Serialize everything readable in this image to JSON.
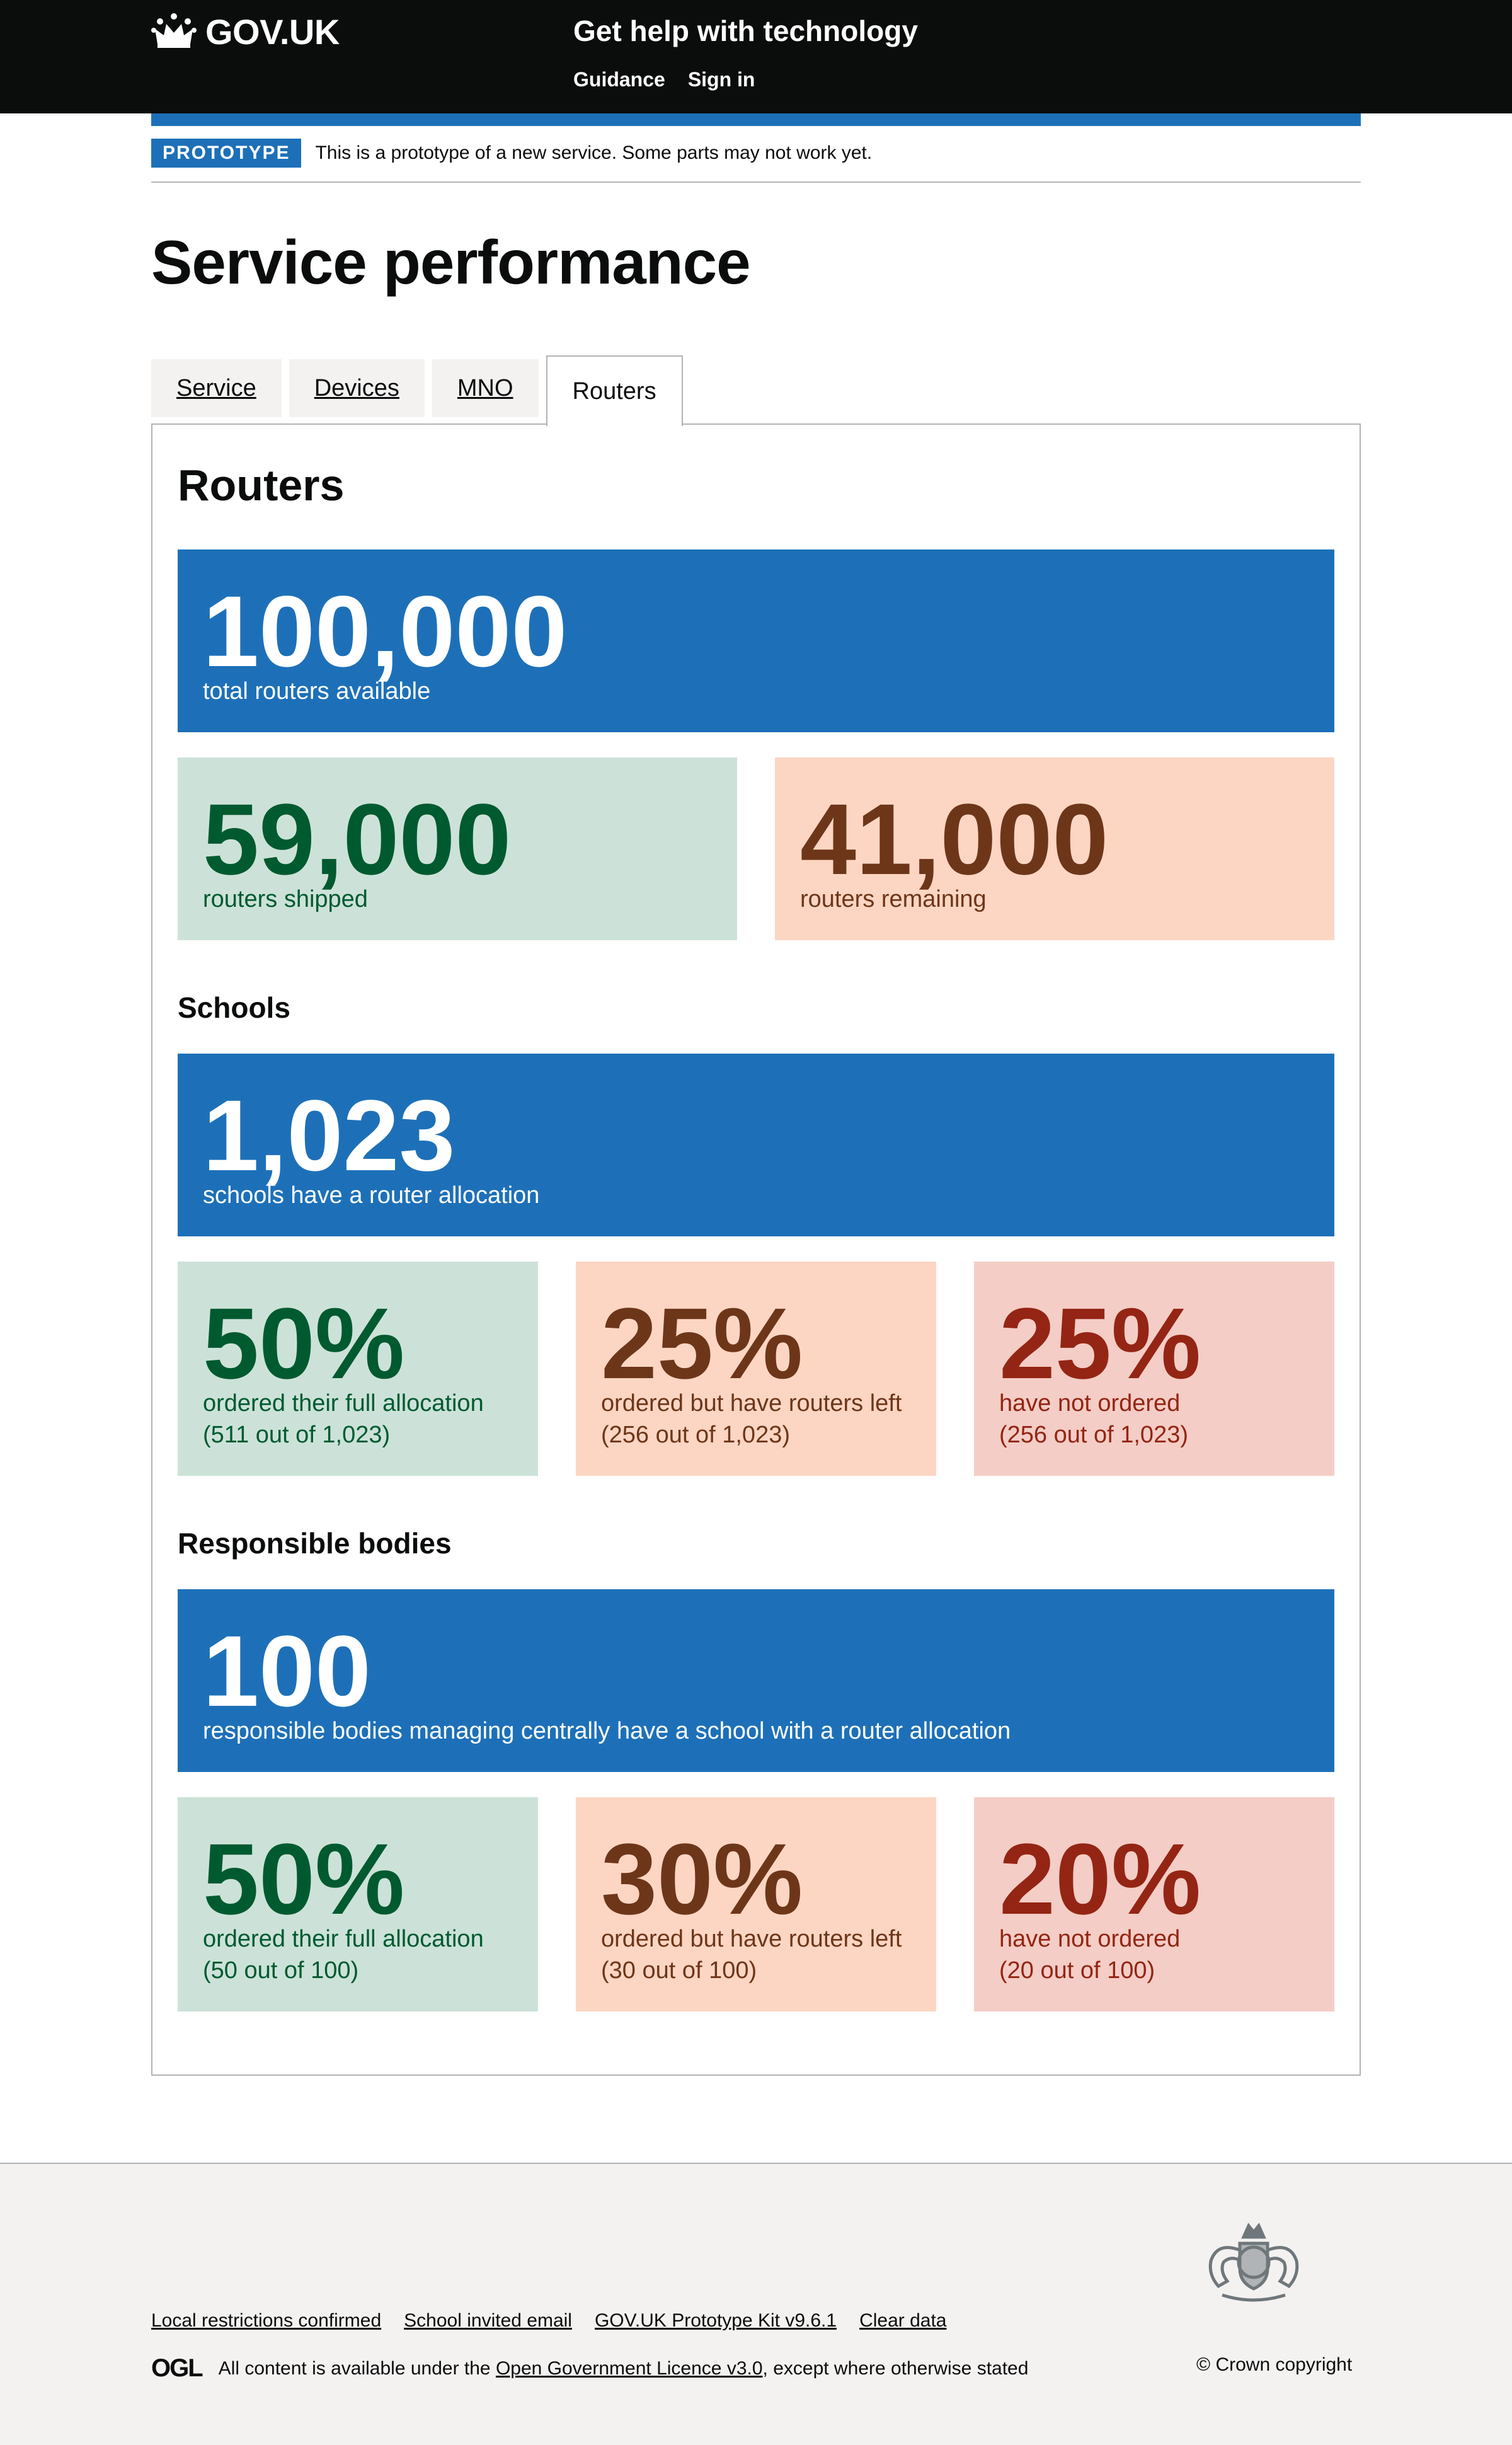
{
  "header": {
    "logo_text": "GOV.UK",
    "service_name": "Get help with technology",
    "nav": [
      "Guidance",
      "Sign in"
    ]
  },
  "phase": {
    "tag": "PROTOTYPE",
    "text": "This is a prototype of a new service. Some parts may not work yet."
  },
  "page_title": "Service performance",
  "tabs": [
    {
      "label": "Service",
      "active": false
    },
    {
      "label": "Devices",
      "active": false
    },
    {
      "label": "MNO",
      "active": false
    },
    {
      "label": "Routers",
      "active": true
    }
  ],
  "routers": {
    "heading": "Routers",
    "total": {
      "value": "100,000",
      "label": "total routers available"
    },
    "shipped": {
      "value": "59,000",
      "label": "routers shipped"
    },
    "remaining": {
      "value": "41,000",
      "label": "routers remaining"
    }
  },
  "schools": {
    "heading": "Schools",
    "total": {
      "value": "1,023",
      "label": "schools have a router allocation"
    },
    "full": {
      "value": "50%",
      "label": "ordered their full allocation",
      "detail": "(511 out of 1,023)"
    },
    "partial": {
      "value": "25%",
      "label": "ordered but have routers left",
      "detail": "(256 out of 1,023)"
    },
    "none": {
      "value": "25%",
      "label": "have not ordered",
      "detail": "(256 out of 1,023)"
    }
  },
  "responsible_bodies": {
    "heading": "Responsible bodies",
    "total": {
      "value": "100",
      "label": "responsible bodies managing centrally have a school with a router allocation"
    },
    "full": {
      "value": "50%",
      "label": "ordered their full allocation",
      "detail": "(50 out of 100)"
    },
    "partial": {
      "value": "30%",
      "label": "ordered but have routers left",
      "detail": "(30 out of 100)"
    },
    "none": {
      "value": "20%",
      "label": "have not ordered",
      "detail": "(20 out of 100)"
    }
  },
  "footer": {
    "links": [
      "Local restrictions confirmed",
      "School invited email",
      "GOV.UK Prototype Kit v9.6.1",
      "Clear data"
    ],
    "ogl_logo": "OGL",
    "licence_prefix": "All content is available under the ",
    "licence_link": "Open Government Licence v3.0",
    "licence_suffix": ", except where otherwise stated",
    "copyright": "© Crown copyright"
  },
  "colors": {
    "header_bg": "#0b0c0c",
    "brand_blue": "#1d70b8",
    "green_bg": "#cce2d8",
    "green_text": "#005a30",
    "orange_bg": "#fcd6c3",
    "orange_text": "#6e3619",
    "red_bg": "#f4cdc6",
    "red_text": "#942514",
    "footer_bg": "#f3f2f1"
  },
  "icons": [
    "crown-icon",
    "crest-icon"
  ]
}
